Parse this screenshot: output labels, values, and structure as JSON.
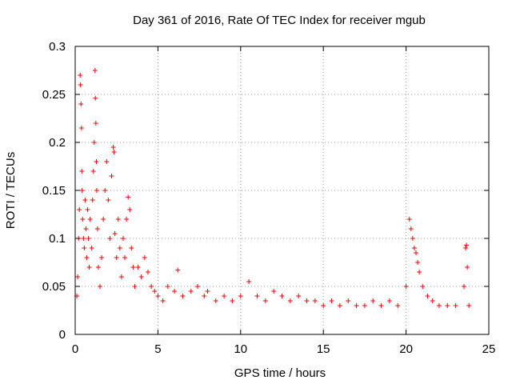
{
  "chart_data": {
    "type": "scatter",
    "title": "Day 361 of 2016, Rate Of TEC Index for receiver mgub",
    "xlabel": "GPS time / hours",
    "ylabel": "ROTI / TECUs",
    "xlim": [
      0,
      25
    ],
    "ylim": [
      0,
      0.3
    ],
    "xticks": [
      0,
      5,
      10,
      15,
      20,
      25
    ],
    "yticks": [
      0,
      0.05,
      0.1,
      0.15,
      0.2,
      0.25,
      0.3
    ],
    "xtick_labels": [
      "0",
      "5",
      "10",
      "15",
      "20",
      "25"
    ],
    "ytick_labels": [
      "0",
      "0.05",
      "0.1",
      "0.15",
      "0.2",
      "0.25",
      "0.3"
    ],
    "grid": true,
    "marker": "+",
    "color": "#ff0000",
    "series": [
      {
        "name": "ROTI",
        "points": [
          [
            0.1,
            0.04
          ],
          [
            0.15,
            0.06
          ],
          [
            0.2,
            0.1
          ],
          [
            0.25,
            0.13
          ],
          [
            0.3,
            0.27
          ],
          [
            0.32,
            0.26
          ],
          [
            0.35,
            0.24
          ],
          [
            0.38,
            0.215
          ],
          [
            0.4,
            0.17
          ],
          [
            0.42,
            0.15
          ],
          [
            0.45,
            0.12
          ],
          [
            0.5,
            0.1
          ],
          [
            0.55,
            0.09
          ],
          [
            0.6,
            0.14
          ],
          [
            0.65,
            0.11
          ],
          [
            0.7,
            0.08
          ],
          [
            0.75,
            0.13
          ],
          [
            0.8,
            0.1
          ],
          [
            0.85,
            0.07
          ],
          [
            0.9,
            0.12
          ],
          [
            1.0,
            0.09
          ],
          [
            1.05,
            0.14
          ],
          [
            1.1,
            0.17
          ],
          [
            1.15,
            0.2
          ],
          [
            1.2,
            0.275
          ],
          [
            1.22,
            0.246
          ],
          [
            1.25,
            0.22
          ],
          [
            1.28,
            0.18
          ],
          [
            1.3,
            0.15
          ],
          [
            1.35,
            0.11
          ],
          [
            1.4,
            0.07
          ],
          [
            1.5,
            0.05
          ],
          [
            1.6,
            0.08
          ],
          [
            1.7,
            0.12
          ],
          [
            1.8,
            0.15
          ],
          [
            1.9,
            0.18
          ],
          [
            2.0,
            0.14
          ],
          [
            2.1,
            0.1
          ],
          [
            2.2,
            0.165
          ],
          [
            2.3,
            0.195
          ],
          [
            2.35,
            0.19
          ],
          [
            2.4,
            0.105
          ],
          [
            2.5,
            0.08
          ],
          [
            2.6,
            0.12
          ],
          [
            2.7,
            0.09
          ],
          [
            2.8,
            0.06
          ],
          [
            2.9,
            0.1
          ],
          [
            3.0,
            0.08
          ],
          [
            3.1,
            0.12
          ],
          [
            3.2,
            0.143
          ],
          [
            3.3,
            0.13
          ],
          [
            3.4,
            0.09
          ],
          [
            3.5,
            0.07
          ],
          [
            3.6,
            0.05
          ],
          [
            3.8,
            0.07
          ],
          [
            4.0,
            0.06
          ],
          [
            4.2,
            0.08
          ],
          [
            4.4,
            0.065
          ],
          [
            4.6,
            0.05
          ],
          [
            4.8,
            0.045
          ],
          [
            5.0,
            0.04
          ],
          [
            5.3,
            0.035
          ],
          [
            5.6,
            0.05
          ],
          [
            6.0,
            0.045
          ],
          [
            6.2,
            0.067
          ],
          [
            6.5,
            0.04
          ],
          [
            7.0,
            0.045
          ],
          [
            7.4,
            0.05
          ],
          [
            7.8,
            0.04
          ],
          [
            8.0,
            0.045
          ],
          [
            8.5,
            0.035
          ],
          [
            9.0,
            0.04
          ],
          [
            9.5,
            0.035
          ],
          [
            10.0,
            0.04
          ],
          [
            10.5,
            0.055
          ],
          [
            11.0,
            0.04
          ],
          [
            11.5,
            0.035
          ],
          [
            12.0,
            0.045
          ],
          [
            12.5,
            0.04
          ],
          [
            13.0,
            0.035
          ],
          [
            13.5,
            0.04
          ],
          [
            14.0,
            0.035
          ],
          [
            14.5,
            0.035
          ],
          [
            15.0,
            0.03
          ],
          [
            15.5,
            0.035
          ],
          [
            16.0,
            0.03
          ],
          [
            16.5,
            0.035
          ],
          [
            17.0,
            0.03
          ],
          [
            17.5,
            0.03
          ],
          [
            18.0,
            0.035
          ],
          [
            18.5,
            0.03
          ],
          [
            19.0,
            0.035
          ],
          [
            19.5,
            0.03
          ],
          [
            20.0,
            0.05
          ],
          [
            20.2,
            0.12
          ],
          [
            20.3,
            0.11
          ],
          [
            20.4,
            0.1
          ],
          [
            20.5,
            0.09
          ],
          [
            20.6,
            0.085
          ],
          [
            20.7,
            0.075
          ],
          [
            20.8,
            0.065
          ],
          [
            21.0,
            0.05
          ],
          [
            21.3,
            0.04
          ],
          [
            21.6,
            0.035
          ],
          [
            22.0,
            0.03
          ],
          [
            22.5,
            0.03
          ],
          [
            23.0,
            0.03
          ],
          [
            23.5,
            0.05
          ],
          [
            23.6,
            0.09
          ],
          [
            23.65,
            0.093
          ],
          [
            23.7,
            0.07
          ],
          [
            23.8,
            0.03
          ]
        ]
      }
    ]
  }
}
